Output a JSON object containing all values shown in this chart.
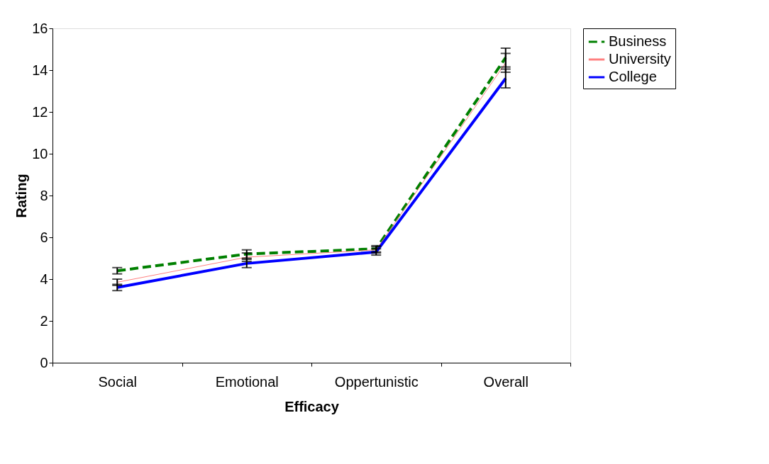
{
  "chart_data": {
    "type": "line",
    "xlabel": "Efficacy",
    "ylabel": "Rating",
    "categories": [
      "Social",
      "Emotional",
      "Oppertunistic",
      "Overall"
    ],
    "series": [
      {
        "name": "Business",
        "color": "#008000",
        "line_style": "dashed",
        "values": [
          4.4,
          5.2,
          5.45,
          14.6
        ],
        "errors": [
          0.15,
          0.2,
          0.15,
          0.45
        ]
      },
      {
        "name": "University",
        "color": "#ff8080",
        "line_style": "solid",
        "values": [
          3.85,
          5.05,
          5.4,
          14.35
        ],
        "errors": [
          0.15,
          0.2,
          0.15,
          0.45
        ]
      },
      {
        "name": "College",
        "color": "#0000ff",
        "line_style": "solid",
        "values": [
          3.6,
          4.75,
          5.3,
          13.6
        ],
        "errors": [
          0.15,
          0.2,
          0.15,
          0.45
        ]
      }
    ],
    "ylim": [
      0,
      16
    ],
    "yticks": [
      0,
      2,
      4,
      6,
      8,
      10,
      12,
      14,
      16
    ],
    "grid": false,
    "legend": "right",
    "marker": "none"
  }
}
